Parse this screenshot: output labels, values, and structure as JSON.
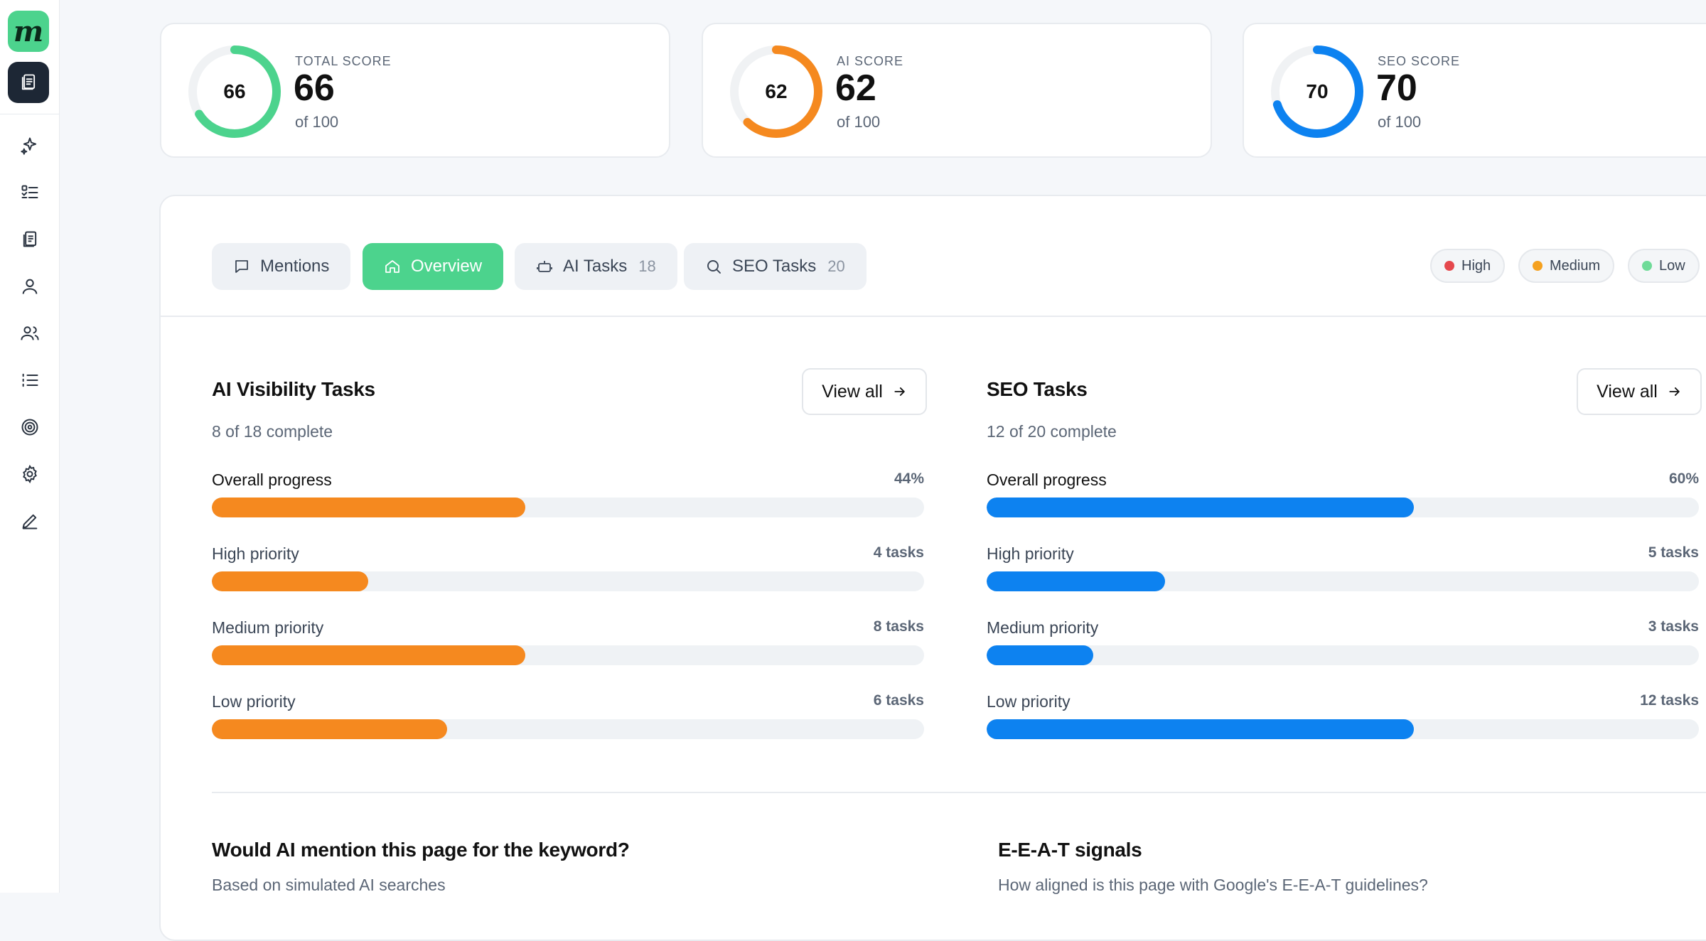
{
  "brand": {
    "logo_letter": "m"
  },
  "colors": {
    "green": "#4cd38d",
    "orange": "#f5891f",
    "blue": "#0d82f0",
    "red": "#e5484d"
  },
  "sidebar": {
    "items": [
      "sparkle-icon",
      "checklist-icon",
      "building-icon",
      "user-icon",
      "users-icon",
      "list-icon",
      "target-icon",
      "settings-icon",
      "pen-icon"
    ]
  },
  "scores": [
    {
      "label": "TOTAL SCORE",
      "value": "66",
      "of": "of 100",
      "pct": 66,
      "color": "#4cd38d"
    },
    {
      "label": "AI SCORE",
      "value": "62",
      "of": "of 100",
      "pct": 62,
      "color": "#f5891f"
    },
    {
      "label": "SEO SCORE",
      "value": "70",
      "of": "of 100",
      "pct": 70,
      "color": "#0d82f0"
    }
  ],
  "tabs": [
    {
      "label": "Mentions",
      "count": "",
      "icon": "chat-icon"
    },
    {
      "label": "Overview",
      "count": "",
      "icon": "home-icon",
      "active": true
    },
    {
      "label": "AI Tasks",
      "count": "18",
      "icon": "robot-icon"
    },
    {
      "label": "SEO Tasks",
      "count": "20",
      "icon": "search-icon"
    }
  ],
  "legend": [
    {
      "label": "High",
      "color": "#e5484d"
    },
    {
      "label": "Medium",
      "color": "#f5a11f"
    },
    {
      "label": "Low",
      "color": "#6fdb98"
    }
  ],
  "ai_tasks": {
    "title": "AI Visibility Tasks",
    "subtitle": "8 of 18 complete",
    "view_all": "View all",
    "rows": [
      {
        "label": "Overall progress",
        "value": "44%",
        "fraction": 0.44,
        "strong": true
      },
      {
        "label": "High priority",
        "value": "4 tasks",
        "fraction": 0.22
      },
      {
        "label": "Medium priority",
        "value": "8 tasks",
        "fraction": 0.44
      },
      {
        "label": "Low priority",
        "value": "6 tasks",
        "fraction": 0.33
      }
    ]
  },
  "seo_tasks": {
    "title": "SEO Tasks",
    "subtitle": "12 of 20 complete",
    "view_all": "View all",
    "rows": [
      {
        "label": "Overall progress",
        "value": "60%",
        "fraction": 0.6,
        "strong": true
      },
      {
        "label": "High priority",
        "value": "5 tasks",
        "fraction": 0.25
      },
      {
        "label": "Medium priority",
        "value": "3 tasks",
        "fraction": 0.15
      },
      {
        "label": "Low priority",
        "value": "12 tasks",
        "fraction": 0.6
      }
    ]
  },
  "bottom": {
    "left_title": "Would AI mention this page for the keyword?",
    "left_sub": "Based on simulated AI searches",
    "right_title": "E-E-A-T signals",
    "right_sub": "How aligned is this page with Google's E-E-A-T guidelines?"
  }
}
